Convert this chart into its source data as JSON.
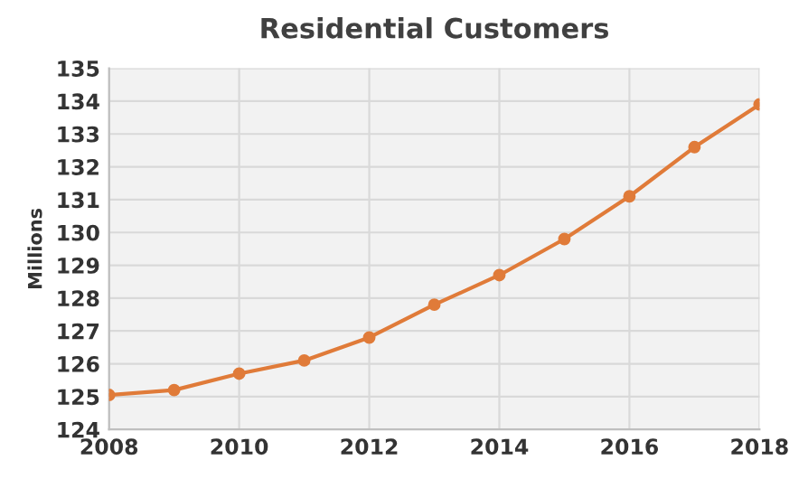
{
  "chart_data": {
    "type": "line",
    "title": "Residential Customers",
    "ylabel": "Millions",
    "x": [
      2008,
      2009,
      2010,
      2011,
      2012,
      2013,
      2014,
      2015,
      2016,
      2017,
      2018
    ],
    "series": [
      {
        "color": "#e07b39",
        "values": [
          125.05,
          125.2,
          125.7,
          126.1,
          126.8,
          127.8,
          128.7,
          129.8,
          131.1,
          132.6,
          133.9
        ]
      }
    ],
    "xlim": [
      2008,
      2018
    ],
    "xticks": [
      2008,
      2010,
      2012,
      2014,
      2016,
      2018
    ],
    "ylim": [
      124,
      135
    ],
    "yticks": [
      124,
      125,
      126,
      127,
      128,
      129,
      130,
      131,
      132,
      133,
      134,
      135
    ],
    "grid": true,
    "marker": "circle",
    "line_style": "solid"
  }
}
